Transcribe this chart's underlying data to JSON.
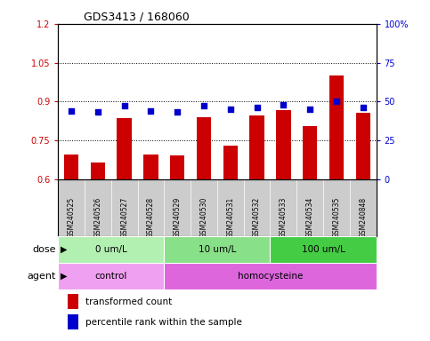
{
  "title": "GDS3413 / 168060",
  "samples": [
    "GSM240525",
    "GSM240526",
    "GSM240527",
    "GSM240528",
    "GSM240529",
    "GSM240530",
    "GSM240531",
    "GSM240532",
    "GSM240533",
    "GSM240534",
    "GSM240535",
    "GSM240848"
  ],
  "transformed_count": [
    0.695,
    0.665,
    0.835,
    0.695,
    0.69,
    0.84,
    0.73,
    0.845,
    0.865,
    0.805,
    1.0,
    0.855
  ],
  "percentile_rank": [
    44,
    43,
    47,
    44,
    43,
    47,
    45,
    46,
    48,
    45,
    50,
    46
  ],
  "bar_color": "#cc0000",
  "dot_color": "#0000cc",
  "ylim_left": [
    0.6,
    1.2
  ],
  "ylim_right": [
    0,
    100
  ],
  "yticks_left": [
    0.6,
    0.75,
    0.9,
    1.05,
    1.2
  ],
  "yticks_right": [
    0,
    25,
    50,
    75,
    100
  ],
  "ytick_labels_left": [
    "0.6",
    "0.75",
    "0.9",
    "1.05",
    "1.2"
  ],
  "ytick_labels_right": [
    "0",
    "25",
    "50",
    "75",
    "100%"
  ],
  "hlines": [
    0.75,
    0.9,
    1.05
  ],
  "dose_groups": [
    {
      "label": "0 um/L",
      "start": 0,
      "end": 4,
      "color": "#b2f0b2"
    },
    {
      "label": "10 um/L",
      "start": 4,
      "end": 8,
      "color": "#88e088"
    },
    {
      "label": "100 um/L",
      "start": 8,
      "end": 12,
      "color": "#44cc44"
    }
  ],
  "agent_groups": [
    {
      "label": "control",
      "start": 0,
      "end": 4,
      "color": "#f0a0f0"
    },
    {
      "label": "homocysteine",
      "start": 4,
      "end": 12,
      "color": "#dd66dd"
    }
  ],
  "legend_items": [
    {
      "color": "#cc0000",
      "label": "transformed count"
    },
    {
      "color": "#0000cc",
      "label": "percentile rank within the sample"
    }
  ],
  "sample_bg_color": "#cccccc",
  "background_color": "#ffffff"
}
